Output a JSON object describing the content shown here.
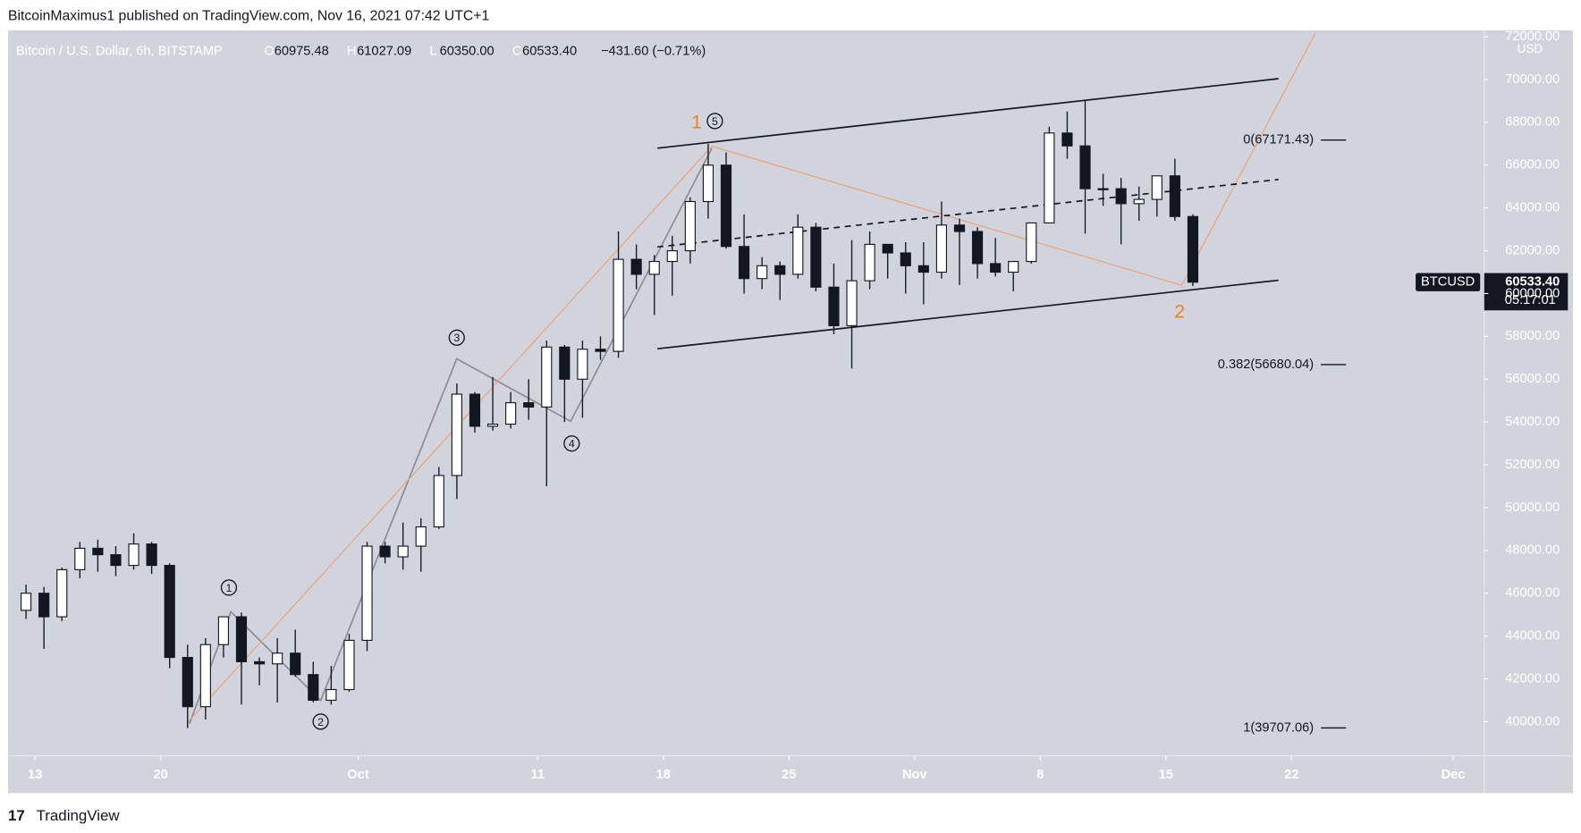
{
  "header": {
    "published": "BitcoinMaximus1 published on TradingView.com, Nov 16, 2021 07:42 UTC+1",
    "ohlc": [
      {
        "key": "O",
        "value": "60975.48"
      },
      {
        "key": "H",
        "value": "61027.09"
      },
      {
        "key": "L",
        "value": "60350.00"
      },
      {
        "key": "C",
        "value": "60533.40"
      }
    ],
    "change": "−431.60 (−0.71%)"
  },
  "footer": {
    "brand": "TradingView"
  },
  "chart_data": {
    "type": "candlestick",
    "title": "Bitcoin / U.S. Dollar, 6h, BITSTAMP",
    "y_unit": "USD",
    "up_color": "#ffffff",
    "down_color": "#131722",
    "grid": false,
    "x": [
      "2021-09-12",
      "2021-09-13",
      "2021-09-14",
      "2021-09-15",
      "2021-09-16",
      "2021-09-17",
      "2021-09-18",
      "2021-09-19",
      "2021-09-20",
      "2021-09-21",
      "2021-09-22",
      "2021-09-23",
      "2021-09-24",
      "2021-09-25",
      "2021-09-26",
      "2021-09-27",
      "2021-09-28",
      "2021-09-29",
      "2021-09-30",
      "2021-10-01",
      "2021-10-02",
      "2021-10-03",
      "2021-10-04",
      "2021-10-05",
      "2021-10-06",
      "2021-10-07",
      "2021-10-08",
      "2021-10-09",
      "2021-10-10",
      "2021-10-11",
      "2021-10-12",
      "2021-10-13",
      "2021-10-14",
      "2021-10-15",
      "2021-10-16",
      "2021-10-17",
      "2021-10-18",
      "2021-10-19",
      "2021-10-20",
      "2021-10-21",
      "2021-10-22",
      "2021-10-23",
      "2021-10-24",
      "2021-10-25",
      "2021-10-26",
      "2021-10-27",
      "2021-10-28",
      "2021-10-29",
      "2021-10-30",
      "2021-10-31",
      "2021-11-01",
      "2021-11-02",
      "2021-11-03",
      "2021-11-04",
      "2021-11-05",
      "2021-11-06",
      "2021-11-07",
      "2021-11-08",
      "2021-11-09",
      "2021-11-10",
      "2021-11-11",
      "2021-11-12",
      "2021-11-13",
      "2021-11-14",
      "2021-11-15",
      "2021-11-16"
    ],
    "open": [
      45200,
      46000,
      44900,
      47100,
      48100,
      47800,
      47300,
      48300,
      47300,
      43000,
      40700,
      43600,
      44900,
      42800,
      42700,
      43200,
      42200,
      41000,
      41500,
      43800,
      48200,
      47700,
      48200,
      49100,
      51500,
      55300,
      53800,
      53900,
      54900,
      54700,
      57500,
      56000,
      57400,
      57300,
      61600,
      60900,
      61500,
      62000,
      64300,
      66000,
      62200,
      60700,
      61300,
      60900,
      63100,
      60300,
      58500,
      60600,
      62300,
      61900,
      61300,
      61000,
      63200,
      62900,
      61400,
      61000,
      61500,
      63300,
      67500,
      66900,
      64900,
      64900,
      64200,
      64400,
      65500,
      63600
    ],
    "high": [
      46400,
      46300,
      47200,
      48400,
      48500,
      48200,
      48800,
      48400,
      47400,
      43600,
      43900,
      44900,
      45100,
      43000,
      43900,
      44300,
      42800,
      42600,
      44100,
      48400,
      48400,
      49300,
      49500,
      51900,
      55800,
      55400,
      56100,
      55400,
      56000,
      57800,
      57600,
      57800,
      58000,
      62900,
      62300,
      61800,
      62700,
      64500,
      67000,
      66600,
      63700,
      61700,
      61500,
      63700,
      63300,
      61400,
      62500,
      62900,
      62300,
      62400,
      62400,
      64300,
      63500,
      63100,
      62600,
      61500,
      63300,
      67800,
      68500,
      69000,
      65600,
      65400,
      65000,
      65500,
      66300,
      63700
    ],
    "low": [
      44800,
      43400,
      44700,
      46700,
      47000,
      46800,
      47100,
      46900,
      42500,
      39700,
      40100,
      43000,
      40800,
      41700,
      40900,
      42100,
      40900,
      40800,
      41400,
      43300,
      47400,
      47100,
      47000,
      49000,
      50400,
      53500,
      53600,
      53700,
      54100,
      51000,
      54000,
      54200,
      56900,
      57000,
      60200,
      59000,
      59900,
      61400,
      63500,
      62100,
      60000,
      60200,
      59700,
      60700,
      60100,
      58100,
      56500,
      60200,
      60700,
      60000,
      59500,
      60700,
      60400,
      60700,
      60800,
      60100,
      61400,
      63300,
      66300,
      62800,
      64100,
      62300,
      63400,
      63600,
      63400,
      60350
    ],
    "close": [
      46000,
      44900,
      47100,
      48100,
      47800,
      47300,
      48300,
      47300,
      43000,
      40700,
      43600,
      44900,
      42800,
      42700,
      43200,
      42200,
      41000,
      41500,
      43800,
      48200,
      47700,
      48200,
      49100,
      51500,
      55300,
      53800,
      53900,
      54900,
      54700,
      57500,
      56000,
      57400,
      57300,
      61600,
      60900,
      61500,
      62000,
      64300,
      66000,
      62200,
      60700,
      61300,
      60900,
      63100,
      60300,
      58500,
      60600,
      62300,
      61900,
      61300,
      61000,
      63200,
      62900,
      61400,
      61000,
      61500,
      63300,
      67500,
      66900,
      64900,
      64900,
      64200,
      64400,
      65500,
      63600,
      60533.4
    ],
    "xlim": [
      "2021-09-11T12:00:00Z",
      "2021-12-02T17:30:00Z"
    ],
    "xticks": [
      {
        "value": "2021-09-13",
        "label": "13"
      },
      {
        "value": "2021-09-20",
        "label": "20"
      },
      {
        "value": "2021-10-01",
        "label": "Oct"
      },
      {
        "value": "2021-10-11",
        "label": "11"
      },
      {
        "value": "2021-10-18",
        "label": "18"
      },
      {
        "value": "2021-10-25",
        "label": "25"
      },
      {
        "value": "2021-11-01",
        "label": "Nov"
      },
      {
        "value": "2021-11-08",
        "label": "8"
      },
      {
        "value": "2021-11-15",
        "label": "15"
      },
      {
        "value": "2021-11-22",
        "label": "22"
      },
      {
        "value": "2021-12-01",
        "label": "Dec"
      }
    ],
    "ylim": [
      38400,
      72300
    ],
    "yticks": [
      {
        "value": 40000,
        "label": "40000.00"
      },
      {
        "value": 42000,
        "label": "42000.00"
      },
      {
        "value": 44000,
        "label": "44000.00"
      },
      {
        "value": 46000,
        "label": "46000.00"
      },
      {
        "value": 48000,
        "label": "48000.00"
      },
      {
        "value": 50000,
        "label": "50000.00"
      },
      {
        "value": 52000,
        "label": "52000.00"
      },
      {
        "value": 54000,
        "label": "54000.00"
      },
      {
        "value": 56000,
        "label": "56000.00"
      },
      {
        "value": 58000,
        "label": "58000.00"
      },
      {
        "value": 60000,
        "label": "60000.00"
      },
      {
        "value": 62000,
        "label": "62000.00"
      },
      {
        "value": 64000,
        "label": "64000.00"
      },
      {
        "value": 66000,
        "label": "66000.00"
      },
      {
        "value": 68000,
        "label": "68000.00"
      },
      {
        "value": 70000,
        "label": "70000.00"
      },
      {
        "value": 72000,
        "label": "72000.00"
      }
    ],
    "last_price": {
      "symbol": "BTCUSD",
      "value": 60533.4,
      "label": "60533.40",
      "countdown": "05:17:01"
    },
    "fib_levels": [
      {
        "label": "0(67171.43)",
        "value": 67171.43
      },
      {
        "label": "0.382(56680.04)",
        "value": 56680.04
      },
      {
        "label": "1(39707.06)",
        "value": 39707.06
      }
    ],
    "wave_labels": [
      "1",
      "5",
      "3",
      "4",
      "1",
      "2",
      "2"
    ]
  }
}
